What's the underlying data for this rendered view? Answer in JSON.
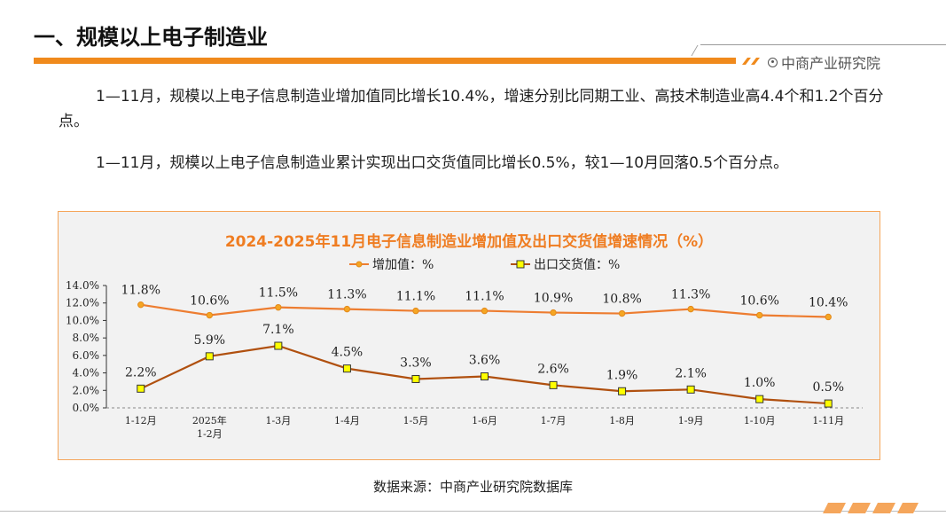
{
  "page": {
    "title": "一、规模以上电子制造业",
    "brand": "中商产业研究院",
    "paragraph1": "1—11月，规模以上电子信息制造业增加值同比增长10.4%，增速分别比同期工业、高技术制造业高4.4个和1.2个百分点。",
    "paragraph2": "1—11月，规模以上电子信息制造业累计实现出口交货值同比增长0.5%，较1—10月回落0.5个百分点。",
    "source": "数据来源：中商产业研究院数据库"
  },
  "colors": {
    "accent": "#f08a1c",
    "series1_line": "#ed7d31",
    "series1_marker": "#f5a623",
    "series2_line": "#b0500f",
    "series2_marker": "#ffff00",
    "chart_title": "#ef7d22"
  },
  "chart_data": {
    "type": "line",
    "title": "2024-2025年11月电子信息制造业增加值及出口交货值增速情况（%）",
    "categories": [
      "1-12月",
      "2025年\n1-2月",
      "1-3月",
      "1-4月",
      "1-5月",
      "1-6月",
      "1-7月",
      "1-8月",
      "1-9月",
      "1-10月",
      "1-11月"
    ],
    "series": [
      {
        "name": "增加值：%",
        "values": [
          11.8,
          10.6,
          11.5,
          11.3,
          11.1,
          11.1,
          10.9,
          10.8,
          11.3,
          10.6,
          10.4
        ],
        "labels": [
          "11.8%",
          "10.6%",
          "11.5%",
          "11.3%",
          "11.1%",
          "11.1%",
          "10.9%",
          "10.8%",
          "11.3%",
          "10.6%",
          "10.4%"
        ]
      },
      {
        "name": "出口交货值：%",
        "values": [
          2.2,
          5.9,
          7.1,
          4.5,
          3.3,
          3.6,
          2.6,
          1.9,
          2.1,
          1.0,
          0.5
        ],
        "labels": [
          "2.2%",
          "5.9%",
          "7.1%",
          "4.5%",
          "3.3%",
          "3.6%",
          "2.6%",
          "1.9%",
          "2.1%",
          "1.0%",
          "0.5%"
        ]
      }
    ],
    "yticks": [
      "0.0%",
      "2.0%",
      "4.0%",
      "6.0%",
      "8.0%",
      "10.0%",
      "12.0%",
      "14.0%"
    ],
    "ylim": [
      0,
      14
    ],
    "grid": false,
    "legend_position": "top-center"
  }
}
